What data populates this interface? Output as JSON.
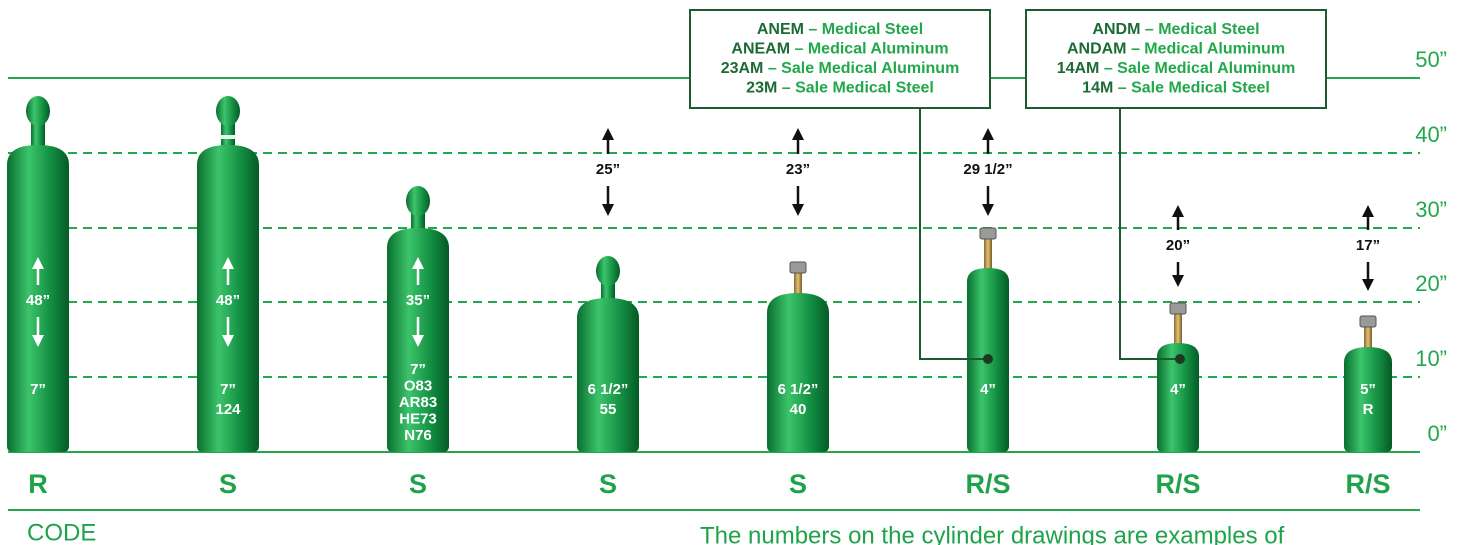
{
  "scale": [
    "50”",
    "40”",
    "30”",
    "20”",
    "10”",
    "0”"
  ],
  "cylinders": [
    {
      "dimension": "48”",
      "labels": [
        "7”"
      ],
      "code": "R"
    },
    {
      "dimension": "48”",
      "labels": [
        "7”",
        "124"
      ],
      "code": "S"
    },
    {
      "dimension": "35”",
      "labels": [
        "7”",
        "O83",
        "AR83",
        "HE73",
        "N76"
      ],
      "code": "S"
    },
    {
      "dimension": "25”",
      "labels": [
        "6 1/2”",
        "55"
      ],
      "code": "S"
    },
    {
      "dimension": "23”",
      "labels": [
        "6 1/2”",
        "40"
      ],
      "code": "S"
    },
    {
      "dimension": "29 1/2”",
      "labels": [
        "4”"
      ],
      "code": "R/S"
    },
    {
      "dimension": "20”",
      "labels": [
        "4”"
      ],
      "code": "R/S"
    },
    {
      "dimension": "17”",
      "labels": [
        "5”",
        "R"
      ],
      "code": "R/S"
    }
  ],
  "callouts": [
    {
      "lines": [
        {
          "code": "ANEM",
          "text": " – Medical Steel"
        },
        {
          "code": "ANEAM",
          "text": " – Medical Aluminum"
        },
        {
          "code": "23AM",
          "text": " – Sale Medical Aluminum"
        },
        {
          "code": "23M",
          "text": " – Sale Medical Steel"
        }
      ]
    },
    {
      "lines": [
        {
          "code": "ANDM",
          "text": " – Medical Steel"
        },
        {
          "code": "ANDAM",
          "text": " – Medical Aluminum"
        },
        {
          "code": "14AM",
          "text": " – Sale Medical Aluminum"
        },
        {
          "code": "14M",
          "text": " – Sale Medical Steel"
        }
      ]
    }
  ],
  "legend_title": "CODE",
  "footer": "The numbers on the cylinder drawings are examples of"
}
